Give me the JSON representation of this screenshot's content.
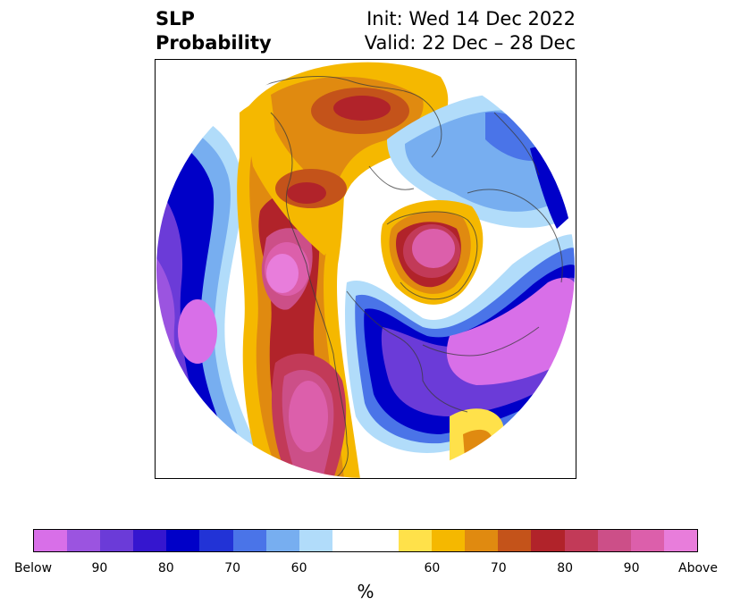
{
  "title": {
    "left_line1": "SLP",
    "left_line2": "Probability",
    "right_line1": "Init: Wed 14 Dec 2022",
    "right_line2": "Valid: 22 Dec – 28 Dec"
  },
  "colorbar": {
    "unit": "%",
    "colors": [
      "#d86fe8",
      "#9b54e0",
      "#6b3bd8",
      "#3516cf",
      "#0000c8",
      "#2233d6",
      "#4a74e8",
      "#77aef0",
      "#b1dcfa",
      "#ffffff",
      "#ffffff",
      "#ffe14a",
      "#f5b800",
      "#e08a10",
      "#c4531a",
      "#b1232a",
      "#c23a58",
      "#cc4f88",
      "#dc5fab",
      "#e87ddb"
    ],
    "ticks": [
      "Below",
      "90",
      "80",
      "70",
      "60",
      "60",
      "70",
      "80",
      "90",
      "Above"
    ]
  },
  "map": {
    "projection": "north-polar-stereographic",
    "palette": {
      "below_strong": "#d86fe8",
      "below_mid": "#6b3bd8",
      "below_blue": "#0000c8",
      "below_light": "#77aef0",
      "below_faint": "#b1dcfa",
      "neutral": "#ffffff",
      "above_yellow": "#f5b800",
      "above_orange": "#e08a10",
      "above_red": "#b1232a",
      "above_strong": "#dc5fab",
      "coastline": "#3a3a3a"
    }
  }
}
